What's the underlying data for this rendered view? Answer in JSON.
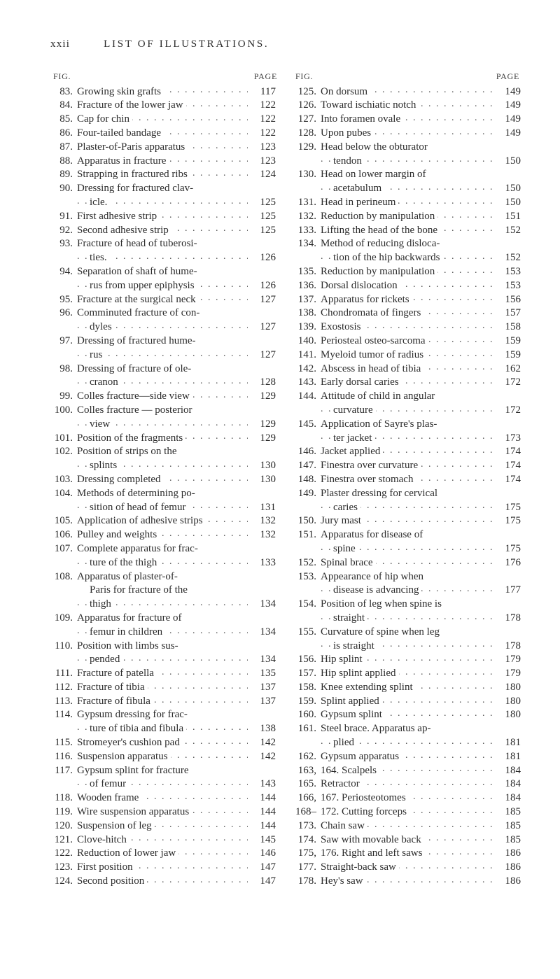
{
  "header": {
    "roman": "xxii",
    "title": "LIST OF ILLUSTRATIONS."
  },
  "col_head": {
    "left": "FIG.",
    "right": "PAGE"
  },
  "col1": [
    {
      "n": "83.",
      "t": "Growing skin grafts",
      "p": "117"
    },
    {
      "n": "84.",
      "t": "Fracture of the lower jaw",
      "p": "122"
    },
    {
      "n": "85.",
      "t": "Cap for chin",
      "p": "122"
    },
    {
      "n": "86.",
      "t": "Four-tailed bandage",
      "p": "122"
    },
    {
      "n": "87.",
      "t": "Plaster-of-Paris apparatus",
      "p": "123"
    },
    {
      "n": "88.",
      "t": "Apparatus in fracture",
      "p": "123"
    },
    {
      "n": "89.",
      "t": "Strapping in fractured ribs",
      "p": "124"
    },
    {
      "n": "90.",
      "t": "Dressing for fractured clav-",
      "t2": "icle.",
      "p": "125"
    },
    {
      "n": "91.",
      "t": "First adhesive strip",
      "p": "125"
    },
    {
      "n": "92.",
      "t": "Second adhesive strip",
      "p": "125"
    },
    {
      "n": "93.",
      "t": "Fracture of head of tuberosi-",
      "t2": "ties.",
      "p": "126"
    },
    {
      "n": "94.",
      "t": "Separation of shaft of hume-",
      "t2": "rus from upper epiphysis",
      "p": "126"
    },
    {
      "n": "95.",
      "t": "Fracture at the surgical neck",
      "p": "127"
    },
    {
      "n": "96.",
      "t": "Comminuted fracture of con-",
      "t2": "dyles",
      "p": "127"
    },
    {
      "n": "97.",
      "t": "Dressing of fractured hume-",
      "t2": "rus",
      "p": "127"
    },
    {
      "n": "98.",
      "t": "Dressing of fracture of ole-",
      "t2": "cranon",
      "p": "128"
    },
    {
      "n": "99.",
      "t": "Colles fracture—side view",
      "p": "129"
    },
    {
      "n": "100.",
      "t": "Colles fracture — posterior",
      "t2": "view",
      "p": "129"
    },
    {
      "n": "101.",
      "t": "Position of the fragments",
      "p": "129"
    },
    {
      "n": "102.",
      "t": "Position of strips on the",
      "t2": "splints",
      "p": "130"
    },
    {
      "n": "103.",
      "t": "Dressing completed",
      "p": "130"
    },
    {
      "n": "104.",
      "t": "Methods of determining po-",
      "t2": "sition of head of femur",
      "p": "131"
    },
    {
      "n": "105.",
      "t": "Application of adhesive strips",
      "p": "132"
    },
    {
      "n": "106.",
      "t": "Pulley and weights",
      "p": "132"
    },
    {
      "n": "107.",
      "t": "Complete apparatus for frac-",
      "t2": "ture of the thigh",
      "p": "133"
    },
    {
      "n": "108.",
      "t": "Apparatus of plaster-of-",
      "t2": "Paris for fracture of the",
      "t3": "thigh",
      "p": "134"
    },
    {
      "n": "109.",
      "t": "Apparatus for fracture of",
      "t2": "femur in children",
      "p": "134"
    },
    {
      "n": "110.",
      "t": "Position with limbs sus-",
      "t2": "pended",
      "p": "134"
    },
    {
      "n": "111.",
      "t": "Fracture of patella",
      "p": "135"
    },
    {
      "n": "112.",
      "t": "Fracture of tibia",
      "p": "137"
    },
    {
      "n": "113.",
      "t": "Fracture of fibula",
      "p": "137"
    },
    {
      "n": "114.",
      "t": "Gypsum dressing for frac-",
      "t2": "ture of tibia and fibula",
      "p": "138"
    },
    {
      "n": "115.",
      "t": "Stromeyer's cushion pad",
      "p": "142"
    },
    {
      "n": "116.",
      "t": "Suspension apparatus",
      "p": "142"
    },
    {
      "n": "117.",
      "t": "Gypsum splint for fracture",
      "t2": "of femur",
      "p": "143"
    },
    {
      "n": "118.",
      "t": "Wooden frame",
      "p": "144"
    },
    {
      "n": "119.",
      "t": "Wire suspension apparatus",
      "p": "144"
    },
    {
      "n": "120.",
      "t": "Suspension of leg",
      "p": "144"
    },
    {
      "n": "121.",
      "t": "Clove-hitch",
      "p": "145"
    },
    {
      "n": "122.",
      "t": "Reduction of lower jaw",
      "p": "146"
    },
    {
      "n": "123.",
      "t": "First position",
      "p": "147"
    },
    {
      "n": "124.",
      "t": "Second position",
      "p": "147"
    }
  ],
  "col2": [
    {
      "n": "125.",
      "t": "On dorsum",
      "p": "149"
    },
    {
      "n": "126.",
      "t": "Toward ischiatic notch",
      "p": "149"
    },
    {
      "n": "127.",
      "t": "Into foramen ovale",
      "p": "149"
    },
    {
      "n": "128.",
      "t": "Upon pubes",
      "p": "149"
    },
    {
      "n": "129.",
      "t": "Head below the obturator",
      "t2": "tendon",
      "p": "150"
    },
    {
      "n": "130.",
      "t": "Head on lower margin of",
      "t2": "acetabulum",
      "p": "150"
    },
    {
      "n": "131.",
      "t": "Head in perineum",
      "p": "150"
    },
    {
      "n": "132.",
      "t": "Reduction by manipulation",
      "p": "151"
    },
    {
      "n": "133.",
      "t": "Lifting the head of the bone",
      "p": "152"
    },
    {
      "n": "134.",
      "t": "Method of reducing disloca-",
      "t2": "tion of the hip backwards",
      "p": "152"
    },
    {
      "n": "135.",
      "t": "Reduction by manipulation",
      "p": "153"
    },
    {
      "n": "136.",
      "t": "Dorsal dislocation",
      "p": "153"
    },
    {
      "n": "137.",
      "t": "Apparatus for rickets",
      "p": "156"
    },
    {
      "n": "138.",
      "t": "Chondromata of fingers",
      "p": "157"
    },
    {
      "n": "139.",
      "t": "Exostosis",
      "p": "158"
    },
    {
      "n": "140.",
      "t": "Periosteal osteo-sarcoma",
      "p": "159"
    },
    {
      "n": "141.",
      "t": "Myeloid tumor of radius",
      "p": "159"
    },
    {
      "n": "142.",
      "t": "Abscess in head of tibia",
      "p": "162"
    },
    {
      "n": "143.",
      "t": "Early dorsal caries",
      "p": "172"
    },
    {
      "n": "144.",
      "t": "Attitude of child in angular",
      "t2": "curvature",
      "p": "172"
    },
    {
      "n": "145.",
      "t": "Application of Sayre's plas-",
      "t2": "ter jacket",
      "p": "173"
    },
    {
      "n": "146.",
      "t": "Jacket applied",
      "p": "174"
    },
    {
      "n": "147.",
      "t": "Finestra over curvature",
      "p": "174"
    },
    {
      "n": "148.",
      "t": "Finestra over stomach",
      "p": "174"
    },
    {
      "n": "149.",
      "t": "Plaster dressing for cervical",
      "t2": "caries",
      "p": "175"
    },
    {
      "n": "150.",
      "t": "Jury mast",
      "p": "175"
    },
    {
      "n": "151.",
      "t": "Apparatus for disease of",
      "t2": "spine",
      "p": "175"
    },
    {
      "n": "152.",
      "t": "Spinal brace",
      "p": "176"
    },
    {
      "n": "153.",
      "t": "Appearance of hip when",
      "t2": "disease is advancing",
      "p": "177"
    },
    {
      "n": "154.",
      "t": "Position of leg when spine is",
      "t2": "straight",
      "p": "178"
    },
    {
      "n": "155.",
      "t": "Curvature of spine when leg",
      "t2": "is straight",
      "p": "178"
    },
    {
      "n": "156.",
      "t": "Hip splint",
      "p": "179"
    },
    {
      "n": "157.",
      "t": "Hip splint applied",
      "p": "179"
    },
    {
      "n": "158.",
      "t": "Knee extending splint",
      "p": "180"
    },
    {
      "n": "159.",
      "t": "Splint applied",
      "p": "180"
    },
    {
      "n": "160.",
      "t": "Gypsum splint",
      "p": "180"
    },
    {
      "n": "161.",
      "t": "Steel brace. Apparatus ap-",
      "t2": "plied",
      "p": "181"
    },
    {
      "n": "162.",
      "t": "Gypsum apparatus",
      "p": "181"
    },
    {
      "n": "163,",
      "t": "164. Scalpels",
      "p": "184"
    },
    {
      "n": "165.",
      "t": "Retractor",
      "p": "184"
    },
    {
      "n": "166,",
      "t": "167. Periosteotomes",
      "p": "184"
    },
    {
      "n": "168–",
      "t": "172. Cutting forceps",
      "p": "185"
    },
    {
      "n": "173.",
      "t": "Chain saw",
      "p": "185"
    },
    {
      "n": "174.",
      "t": "Saw with movable back",
      "p": "185"
    },
    {
      "n": "175,",
      "t": "176. Right and left saws",
      "p": "186"
    },
    {
      "n": "177.",
      "t": "Straight-back saw",
      "p": "186"
    },
    {
      "n": "178.",
      "t": "Hey's saw",
      "p": "186"
    }
  ]
}
